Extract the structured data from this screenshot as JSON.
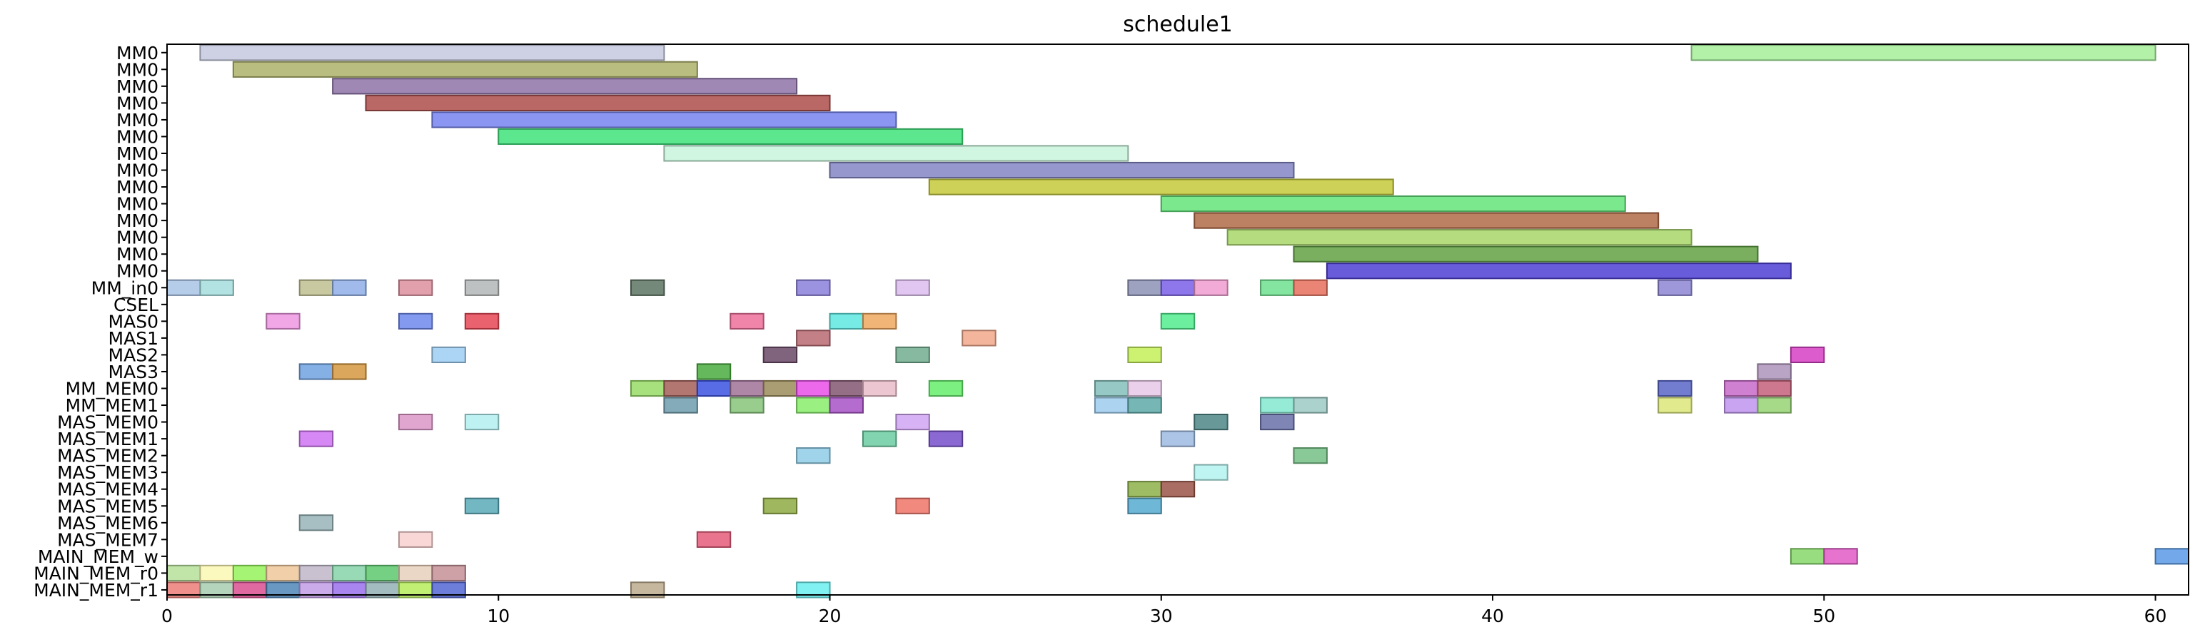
{
  "chart_data": {
    "type": "gantt",
    "title": "schedule1",
    "xlabel": "",
    "ylabel": "",
    "xlim": [
      0,
      61
    ],
    "x_ticks": [
      0,
      10,
      20,
      30,
      40,
      50,
      60
    ],
    "grid": false,
    "legend": "none",
    "rows": [
      "MM0",
      "MM0",
      "MM0",
      "MM0",
      "MM0",
      "MM0",
      "MM0",
      "MM0",
      "MM0",
      "MM0",
      "MM0",
      "MM0",
      "MM0",
      "MM0",
      "MM_in0",
      "CSEL",
      "MAS0",
      "MAS1",
      "MAS2",
      "MAS3",
      "MM_MEM0",
      "MM_MEM1",
      "MAS_MEM0",
      "MAS_MEM1",
      "MAS_MEM2",
      "MAS_MEM3",
      "MAS_MEM4",
      "MAS_MEM5",
      "MAS_MEM6",
      "MAS_MEM7",
      "MAIN_MEM_w",
      "MAIN_MEM_r0",
      "MAIN_MEM_r1"
    ],
    "tasks": [
      {
        "row": 0,
        "start": 1,
        "end": 15,
        "color": "#c4c9de"
      },
      {
        "row": 0,
        "start": 46,
        "end": 60,
        "color": "#a6ef9a"
      },
      {
        "row": 1,
        "start": 2,
        "end": 16,
        "color": "#aeb26a"
      },
      {
        "row": 2,
        "start": 5,
        "end": 19,
        "color": "#8f73a8"
      },
      {
        "row": 3,
        "start": 6,
        "end": 20,
        "color": "#ad4d4a"
      },
      {
        "row": 4,
        "start": 8,
        "end": 22,
        "color": "#7584ee"
      },
      {
        "row": 5,
        "start": 10,
        "end": 24,
        "color": "#3fe27a"
      },
      {
        "row": 6,
        "start": 15,
        "end": 29,
        "color": "#c8f3da"
      },
      {
        "row": 7,
        "start": 20,
        "end": 34,
        "color": "#8486c4"
      },
      {
        "row": 8,
        "start": 23,
        "end": 37,
        "color": "#c4c93a"
      },
      {
        "row": 9,
        "start": 30,
        "end": 44,
        "color": "#64e47a"
      },
      {
        "row": 10,
        "start": 31,
        "end": 45,
        "color": "#b06a46"
      },
      {
        "row": 11,
        "start": 32,
        "end": 46,
        "color": "#a8d76a"
      },
      {
        "row": 12,
        "start": 34,
        "end": 48,
        "color": "#63a144"
      },
      {
        "row": 13,
        "start": 35,
        "end": 49,
        "color": "#4e3fd4"
      },
      {
        "row": 14,
        "start": 0,
        "end": 1,
        "color": "#a9c4e6"
      },
      {
        "row": 14,
        "start": 1,
        "end": 2,
        "color": "#a5dddd"
      },
      {
        "row": 14,
        "start": 4,
        "end": 5,
        "color": "#c0c090"
      },
      {
        "row": 14,
        "start": 5,
        "end": 6,
        "color": "#8faee8"
      },
      {
        "row": 14,
        "start": 7,
        "end": 8,
        "color": "#dd8f9f"
      },
      {
        "row": 14,
        "start": 9,
        "end": 10,
        "color": "#b3b6b6"
      },
      {
        "row": 14,
        "start": 14,
        "end": 15,
        "color": "#5d7463"
      },
      {
        "row": 14,
        "start": 19,
        "end": 20,
        "color": "#8a7fdb"
      },
      {
        "row": 14,
        "start": 22,
        "end": 23,
        "color": "#dcbcef"
      },
      {
        "row": 14,
        "start": 29,
        "end": 30,
        "color": "#8c92b6"
      },
      {
        "row": 14,
        "start": 30,
        "end": 31,
        "color": "#7a5fe6"
      },
      {
        "row": 14,
        "start": 31,
        "end": 32,
        "color": "#ef9ccf"
      },
      {
        "row": 14,
        "start": 33,
        "end": 34,
        "color": "#6ee08f"
      },
      {
        "row": 14,
        "start": 34,
        "end": 35,
        "color": "#e66f5c"
      },
      {
        "row": 14,
        "start": 45,
        "end": 46,
        "color": "#8d86d4"
      },
      {
        "row": 16,
        "start": 3,
        "end": 4,
        "color": "#ef96e2"
      },
      {
        "row": 16,
        "start": 7,
        "end": 8,
        "color": "#6f88ee"
      },
      {
        "row": 16,
        "start": 9,
        "end": 10,
        "color": "#e84656"
      },
      {
        "row": 16,
        "start": 17,
        "end": 18,
        "color": "#ef6f9a"
      },
      {
        "row": 16,
        "start": 20,
        "end": 21,
        "color": "#5ee6e0"
      },
      {
        "row": 16,
        "start": 21,
        "end": 22,
        "color": "#eea860"
      },
      {
        "row": 16,
        "start": 30,
        "end": 31,
        "color": "#52ed8f"
      },
      {
        "row": 17,
        "start": 19,
        "end": 20,
        "color": "#b86a72"
      },
      {
        "row": 17,
        "start": 24,
        "end": 25,
        "color": "#f2a88c"
      },
      {
        "row": 18,
        "start": 8,
        "end": 9,
        "color": "#9ecdf2"
      },
      {
        "row": 18,
        "start": 18,
        "end": 19,
        "color": "#6a4866"
      },
      {
        "row": 18,
        "start": 22,
        "end": 23,
        "color": "#72ad8f"
      },
      {
        "row": 18,
        "start": 29,
        "end": 30,
        "color": "#c4ee58"
      },
      {
        "row": 18,
        "start": 49,
        "end": 50,
        "color": "#d63fc4"
      },
      {
        "row": 19,
        "start": 4,
        "end": 5,
        "color": "#6fa2e0"
      },
      {
        "row": 19,
        "start": 5,
        "end": 6,
        "color": "#d4983f"
      },
      {
        "row": 19,
        "start": 16,
        "end": 17,
        "color": "#4aac3f"
      },
      {
        "row": 19,
        "start": 48,
        "end": 49,
        "color": "#ae94bb"
      },
      {
        "row": 20,
        "start": 14,
        "end": 15,
        "color": "#96dc66"
      },
      {
        "row": 20,
        "start": 15,
        "end": 16,
        "color": "#a45f58"
      },
      {
        "row": 20,
        "start": 16,
        "end": 17,
        "color": "#3b52e0"
      },
      {
        "row": 20,
        "start": 17,
        "end": 18,
        "color": "#a07298"
      },
      {
        "row": 20,
        "start": 18,
        "end": 19,
        "color": "#9c8c5a"
      },
      {
        "row": 20,
        "start": 19,
        "end": 20,
        "color": "#e84fe6"
      },
      {
        "row": 20,
        "start": 20,
        "end": 21,
        "color": "#825670"
      },
      {
        "row": 20,
        "start": 21,
        "end": 22,
        "color": "#e9bcc9"
      },
      {
        "row": 20,
        "start": 23,
        "end": 24,
        "color": "#66ed6c"
      },
      {
        "row": 20,
        "start": 28,
        "end": 29,
        "color": "#84c0bb"
      },
      {
        "row": 20,
        "start": 29,
        "end": 30,
        "color": "#e6c8e6"
      },
      {
        "row": 20,
        "start": 45,
        "end": 46,
        "color": "#5966c8"
      },
      {
        "row": 20,
        "start": 47,
        "end": 48,
        "color": "#c86ac8"
      },
      {
        "row": 20,
        "start": 48,
        "end": 49,
        "color": "#c4607a"
      },
      {
        "row": 21,
        "start": 15,
        "end": 16,
        "color": "#6f9cad"
      },
      {
        "row": 21,
        "start": 17,
        "end": 18,
        "color": "#86c47a"
      },
      {
        "row": 21,
        "start": 19,
        "end": 20,
        "color": "#88ed6a"
      },
      {
        "row": 21,
        "start": 20,
        "end": 21,
        "color": "#a752c6"
      },
      {
        "row": 21,
        "start": 28,
        "end": 29,
        "color": "#9dcdee"
      },
      {
        "row": 21,
        "start": 29,
        "end": 30,
        "color": "#5eaaa8"
      },
      {
        "row": 21,
        "start": 33,
        "end": 34,
        "color": "#84e8d0"
      },
      {
        "row": 21,
        "start": 34,
        "end": 35,
        "color": "#9ccac4"
      },
      {
        "row": 21,
        "start": 45,
        "end": 46,
        "color": "#dce87a"
      },
      {
        "row": 21,
        "start": 47,
        "end": 48,
        "color": "#c094ee"
      },
      {
        "row": 21,
        "start": 48,
        "end": 49,
        "color": "#96d474"
      },
      {
        "row": 22,
        "start": 7,
        "end": 8,
        "color": "#dc96c8"
      },
      {
        "row": 22,
        "start": 9,
        "end": 10,
        "color": "#b3eef0"
      },
      {
        "row": 22,
        "start": 22,
        "end": 23,
        "color": "#d0a4f2"
      },
      {
        "row": 22,
        "start": 31,
        "end": 32,
        "color": "#4e8686"
      },
      {
        "row": 22,
        "start": 33,
        "end": 34,
        "color": "#6870a8"
      },
      {
        "row": 23,
        "start": 4,
        "end": 5,
        "color": "#cf74f2"
      },
      {
        "row": 23,
        "start": 21,
        "end": 22,
        "color": "#6ccca2"
      },
      {
        "row": 23,
        "start": 23,
        "end": 24,
        "color": "#7650ca"
      },
      {
        "row": 23,
        "start": 30,
        "end": 31,
        "color": "#9ebae0"
      },
      {
        "row": 24,
        "start": 19,
        "end": 20,
        "color": "#8fcce6"
      },
      {
        "row": 24,
        "start": 34,
        "end": 35,
        "color": "#74bf86"
      },
      {
        "row": 25,
        "start": 31,
        "end": 32,
        "color": "#b3f2ee"
      },
      {
        "row": 26,
        "start": 29,
        "end": 30,
        "color": "#8cb048"
      },
      {
        "row": 26,
        "start": 30,
        "end": 31,
        "color": "#9a5448"
      },
      {
        "row": 27,
        "start": 9,
        "end": 10,
        "color": "#5aaab8"
      },
      {
        "row": 27,
        "start": 18,
        "end": 19,
        "color": "#8eaa42"
      },
      {
        "row": 27,
        "start": 22,
        "end": 23,
        "color": "#ef7468"
      },
      {
        "row": 27,
        "start": 29,
        "end": 30,
        "color": "#56aad0"
      },
      {
        "row": 28,
        "start": 4,
        "end": 5,
        "color": "#98b4b8"
      },
      {
        "row": 29,
        "start": 7,
        "end": 8,
        "color": "#f8d0d0"
      },
      {
        "row": 29,
        "start": 16,
        "end": 17,
        "color": "#e45c7a"
      },
      {
        "row": 30,
        "start": 49,
        "end": 50,
        "color": "#86d86a"
      },
      {
        "row": 30,
        "start": 50,
        "end": 51,
        "color": "#e25ac6"
      },
      {
        "row": 30,
        "start": 60,
        "end": 61,
        "color": "#5a9ae6"
      },
      {
        "row": 31,
        "start": 0,
        "end": 1,
        "color": "#b6e09a"
      },
      {
        "row": 31,
        "start": 1,
        "end": 2,
        "color": "#fbf8b3"
      },
      {
        "row": 31,
        "start": 2,
        "end": 3,
        "color": "#96f25a"
      },
      {
        "row": 31,
        "start": 3,
        "end": 4,
        "color": "#eec89a"
      },
      {
        "row": 31,
        "start": 4,
        "end": 5,
        "color": "#c0b6c8"
      },
      {
        "row": 31,
        "start": 5,
        "end": 6,
        "color": "#86d4a8"
      },
      {
        "row": 31,
        "start": 6,
        "end": 7,
        "color": "#5ec86f"
      },
      {
        "row": 31,
        "start": 7,
        "end": 8,
        "color": "#e8d0bc"
      },
      {
        "row": 31,
        "start": 8,
        "end": 9,
        "color": "#c49096"
      },
      {
        "row": 32,
        "start": 0,
        "end": 1,
        "color": "#ec7c78"
      },
      {
        "row": 32,
        "start": 1,
        "end": 2,
        "color": "#a8ccb0"
      },
      {
        "row": 32,
        "start": 2,
        "end": 3,
        "color": "#da4f92"
      },
      {
        "row": 32,
        "start": 3,
        "end": 4,
        "color": "#4f86b8"
      },
      {
        "row": 32,
        "start": 4,
        "end": 5,
        "color": "#c39ce8"
      },
      {
        "row": 32,
        "start": 5,
        "end": 6,
        "color": "#9a70ec"
      },
      {
        "row": 32,
        "start": 6,
        "end": 7,
        "color": "#92b0b4"
      },
      {
        "row": 32,
        "start": 7,
        "end": 8,
        "color": "#b6ec5c"
      },
      {
        "row": 32,
        "start": 8,
        "end": 9,
        "color": "#5266d4"
      },
      {
        "row": 32,
        "start": 14,
        "end": 15,
        "color": "#bcac8e"
      },
      {
        "row": 32,
        "start": 19,
        "end": 20,
        "color": "#6ceeee"
      }
    ]
  }
}
